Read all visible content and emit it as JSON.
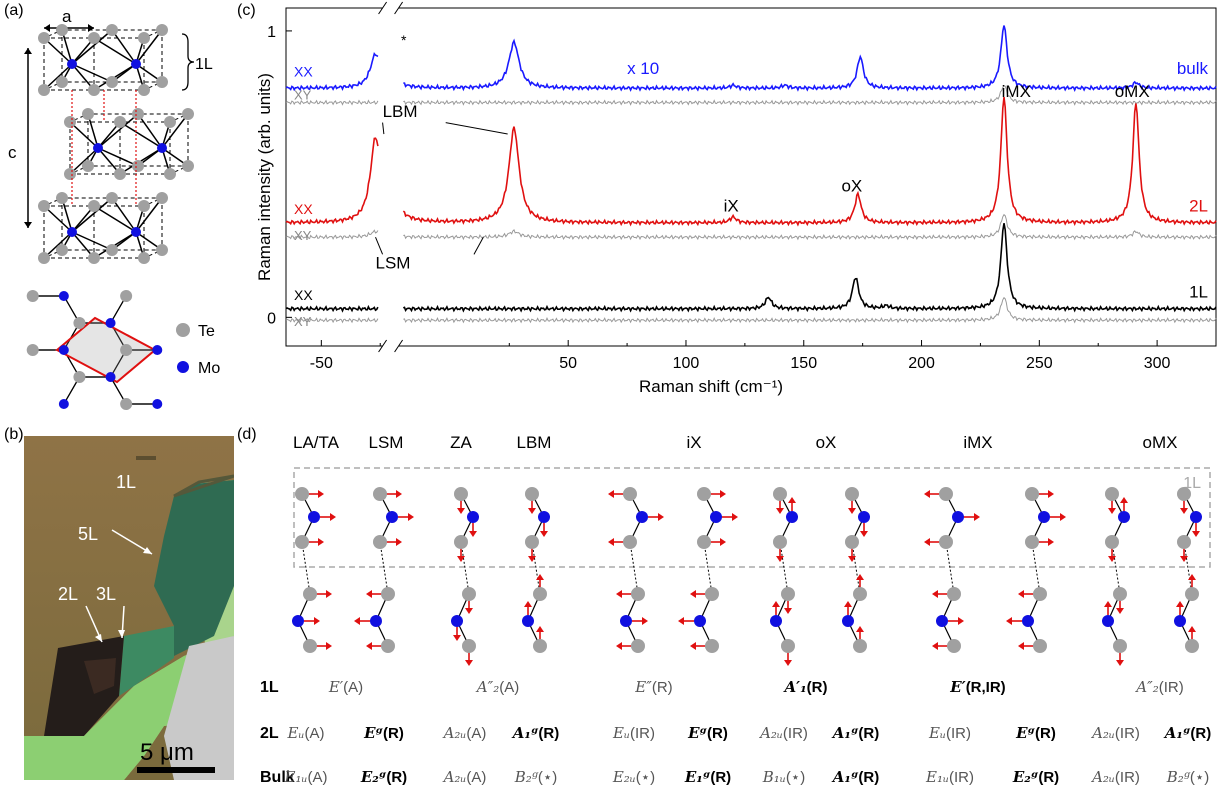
{
  "panels": {
    "a": "(a)",
    "b": "(b)",
    "c": "(c)",
    "d": "(d)"
  },
  "panel_a": {
    "lattice_a": "a",
    "lattice_c": "c",
    "layer": "1L",
    "legend": [
      {
        "name": "Te",
        "color": "#a0a0a0"
      },
      {
        "name": "Mo",
        "color": "#1010e0"
      }
    ]
  },
  "panel_b": {
    "labels": {
      "l1": "1L",
      "l2": "2L",
      "l3": "3L",
      "l5": "5L"
    },
    "scalebar": "5 μm"
  },
  "chart_data": {
    "type": "line",
    "xlabel": "Raman shift (cm⁻¹)",
    "ylabel": "Raman intensity (arb. units)",
    "xlim": [
      -65,
      325
    ],
    "axis_break": [
      -24,
      -22
    ],
    "x_ticks": [
      -50,
      50,
      100,
      150,
      200,
      250,
      300
    ],
    "y_ticks": [
      0,
      1
    ],
    "series": [
      {
        "name": "bulk",
        "pol": "XX",
        "color": "#1a1aff",
        "offset": 0.8,
        "note": "x 10",
        "peaks": [
          [
            -27,
            0.12
          ],
          [
            27,
            0.16
          ],
          [
            120,
            0.01
          ],
          [
            142,
            0.01
          ],
          [
            174,
            0.11
          ],
          [
            235,
            0.22
          ],
          [
            291,
            0.02
          ]
        ]
      },
      {
        "name": "bulk",
        "pol": "XY",
        "color": "#999999",
        "offset": 0.75,
        "peaks": [
          [
            235,
            0.06
          ]
        ]
      },
      {
        "name": "2L",
        "pol": "XX",
        "color": "#e01010",
        "offset": 0.33,
        "peaks": [
          [
            -27,
            0.3
          ],
          [
            27,
            0.33
          ],
          [
            120,
            0.02
          ],
          [
            173,
            0.1
          ],
          [
            235,
            0.44
          ],
          [
            291,
            0.42
          ]
        ]
      },
      {
        "name": "2L",
        "pol": "XY",
        "color": "#999999",
        "offset": 0.28,
        "peaks": [
          [
            -27,
            0.02
          ],
          [
            27,
            0.02
          ],
          [
            235,
            0.08
          ],
          [
            291,
            0.02
          ]
        ]
      },
      {
        "name": "1L",
        "pol": "XX",
        "color": "#000000",
        "offset": 0.03,
        "peaks": [
          [
            135,
            0.04
          ],
          [
            172,
            0.11
          ],
          [
            185,
            0.01
          ],
          [
            235,
            0.3
          ]
        ]
      },
      {
        "name": "1L",
        "pol": "XY",
        "color": "#999999",
        "offset": -0.01,
        "peaks": [
          [
            235,
            0.08
          ]
        ]
      }
    ],
    "annotations": {
      "lbm": "LBM",
      "lsm": "LSM",
      "ix": "iX",
      "ox": "oX",
      "imx": "iMX",
      "omx": "oMX",
      "star": "*",
      "x10": "x 10"
    },
    "pol_labels": {
      "xx": "XX",
      "xy": "XY"
    },
    "trace_labels": {
      "bulk": "bulk",
      "l2": "2L",
      "l1": "1L"
    },
    "ytick_labels": {
      "zero": "0",
      "one": "1"
    }
  },
  "panel_d": {
    "modes": [
      "LA/TA",
      "LSM",
      "ZA",
      "LBM",
      "iX",
      "oX",
      "iMX",
      "oMX"
    ],
    "box_label": "1L",
    "rows": {
      "r1": {
        "label": "1L",
        "cells": [
          {
            "sym": "E′",
            "act": "(A)"
          },
          {
            "sym": "A″₂",
            "act": "(A)"
          },
          {
            "sym": "E″",
            "act": "(R)"
          },
          {
            "sym": "A′₁",
            "act": "(R)",
            "bold": true
          },
          {
            "sym": "E′",
            "act": "(R,IR)",
            "bold": true
          },
          {
            "sym": "A″₂",
            "act": "(IR)"
          }
        ]
      },
      "r2": {
        "label": "2L",
        "cells": [
          {
            "sym": "Eᵤ",
            "act": "(A)"
          },
          {
            "sym": "Eᵍ",
            "act": "(R)",
            "bold": true
          },
          {
            "sym": "A₂ᵤ",
            "act": "(A)"
          },
          {
            "sym": "A₁ᵍ",
            "act": "(R)",
            "bold": true
          },
          {
            "sym": "Eᵤ",
            "act": "(IR)"
          },
          {
            "sym": "Eᵍ",
            "act": "(R)",
            "bold": true
          },
          {
            "sym": "A₂ᵤ",
            "act": "(IR)"
          },
          {
            "sym": "A₁ᵍ",
            "act": "(R)",
            "bold": true
          },
          {
            "sym": "Eᵤ",
            "act": "(IR)"
          },
          {
            "sym": "Eᵍ",
            "act": "(R)",
            "bold": true
          },
          {
            "sym": "A₂ᵤ",
            "act": "(IR)"
          },
          {
            "sym": "A₁ᵍ",
            "act": "(R)",
            "bold": true
          }
        ]
      },
      "r3": {
        "label": "Bulk",
        "cells": [
          {
            "sym": "E₁ᵤ",
            "act": "(A)"
          },
          {
            "sym": "E₂ᵍ",
            "act": "(R)",
            "bold": true
          },
          {
            "sym": "A₂ᵤ",
            "act": "(A)"
          },
          {
            "sym": "B₂ᵍ",
            "act": "(⋆)"
          },
          {
            "sym": "E₂ᵤ",
            "act": "(⋆)"
          },
          {
            "sym": "E₁ᵍ",
            "act": "(R)",
            "bold": true
          },
          {
            "sym": "B₁ᵤ",
            "act": "(⋆)"
          },
          {
            "sym": "A₁ᵍ",
            "act": "(R)",
            "bold": true
          },
          {
            "sym": "E₁ᵤ",
            "act": "(IR)"
          },
          {
            "sym": "E₂ᵍ",
            "act": "(R)",
            "bold": true
          },
          {
            "sym": "A₂ᵤ",
            "act": "(IR)"
          },
          {
            "sym": "B₂ᵍ",
            "act": "(⋆)"
          }
        ]
      }
    }
  }
}
